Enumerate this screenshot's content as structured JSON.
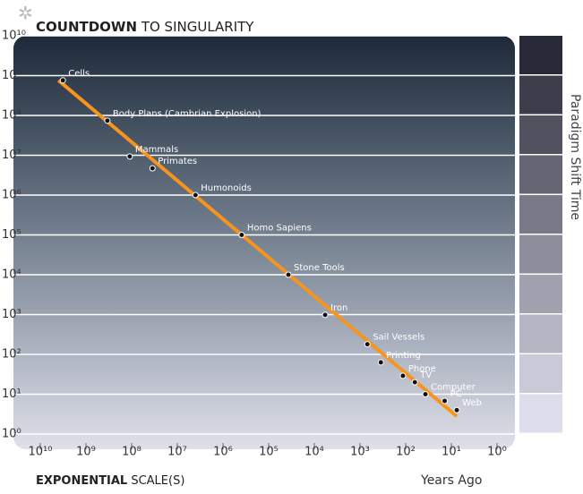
{
  "chart_data": {
    "type": "scatter",
    "title": "COUNTDOWN",
    "title_rest": "TO SINGULARITY",
    "xlabel": "EXPONENTIAL",
    "xlabel_rest": "SCALE(S)",
    "xunit": "Years Ago",
    "side_label": "Paradigm Shift Time",
    "xscale": "log",
    "yscale": "log",
    "grid": true,
    "xlim": [
      10000000000,
      1
    ],
    "ylim": [
      1,
      10000000000
    ],
    "xticks": [
      {
        "value": 10000000000,
        "label": "10¹⁰"
      },
      {
        "value": 1000000000,
        "label": "10⁹"
      },
      {
        "value": 100000000,
        "label": "10⁸"
      },
      {
        "value": 10000000,
        "label": "10⁷"
      },
      {
        "value": 1000000,
        "label": "10⁶"
      },
      {
        "value": 100000,
        "label": "10⁵"
      },
      {
        "value": 10000,
        "label": "10⁴"
      },
      {
        "value": 1000,
        "label": "10³"
      },
      {
        "value": 100,
        "label": "10²"
      },
      {
        "value": 10,
        "label": "10¹"
      },
      {
        "value": 1,
        "label": "10⁰"
      }
    ],
    "yticks": [
      {
        "value": 1,
        "label": "10⁰"
      },
      {
        "value": 10,
        "label": "10¹"
      },
      {
        "value": 100,
        "label": "10²"
      },
      {
        "value": 1000,
        "label": "10³"
      },
      {
        "value": 10000,
        "label": "10⁴"
      },
      {
        "value": 100000,
        "label": "10⁵"
      },
      {
        "value": 1000000,
        "label": "10⁶"
      },
      {
        "value": 10000000,
        "label": "10⁷"
      },
      {
        "value": 100000000,
        "label": "10⁸"
      },
      {
        "value": 1000000000,
        "label": "10⁹"
      },
      {
        "value": 10000000000,
        "label": "10¹⁰"
      }
    ],
    "trend": {
      "color": "#f7941d",
      "x": [
        4000000000,
        7.6
      ],
      "y": [
        760000000,
        2.8
      ]
    },
    "events": {
      "color": "#111111",
      "labels": [
        "Cells",
        "Body Plans (Cambrian Explosion)",
        "Mammals",
        "Primates",
        "Humonoids",
        "Homo Sapiens",
        "Stone Tools",
        "Iron",
        "Sail Vessels",
        "Printing",
        "Phone",
        "TV",
        "Computer",
        "PC",
        "Web"
      ],
      "x": [
        3200000000,
        340000000,
        110000000,
        35000000,
        4000000,
        390000,
        37000,
        5800,
        690,
        350,
        115,
        63,
        37,
        14,
        7.6
      ],
      "y": [
        760000000,
        74000000,
        9300000,
        4700000,
        1000000,
        100000,
        10000,
        980,
        180,
        63,
        29,
        20,
        10,
        6.8,
        4
      ]
    }
  }
}
